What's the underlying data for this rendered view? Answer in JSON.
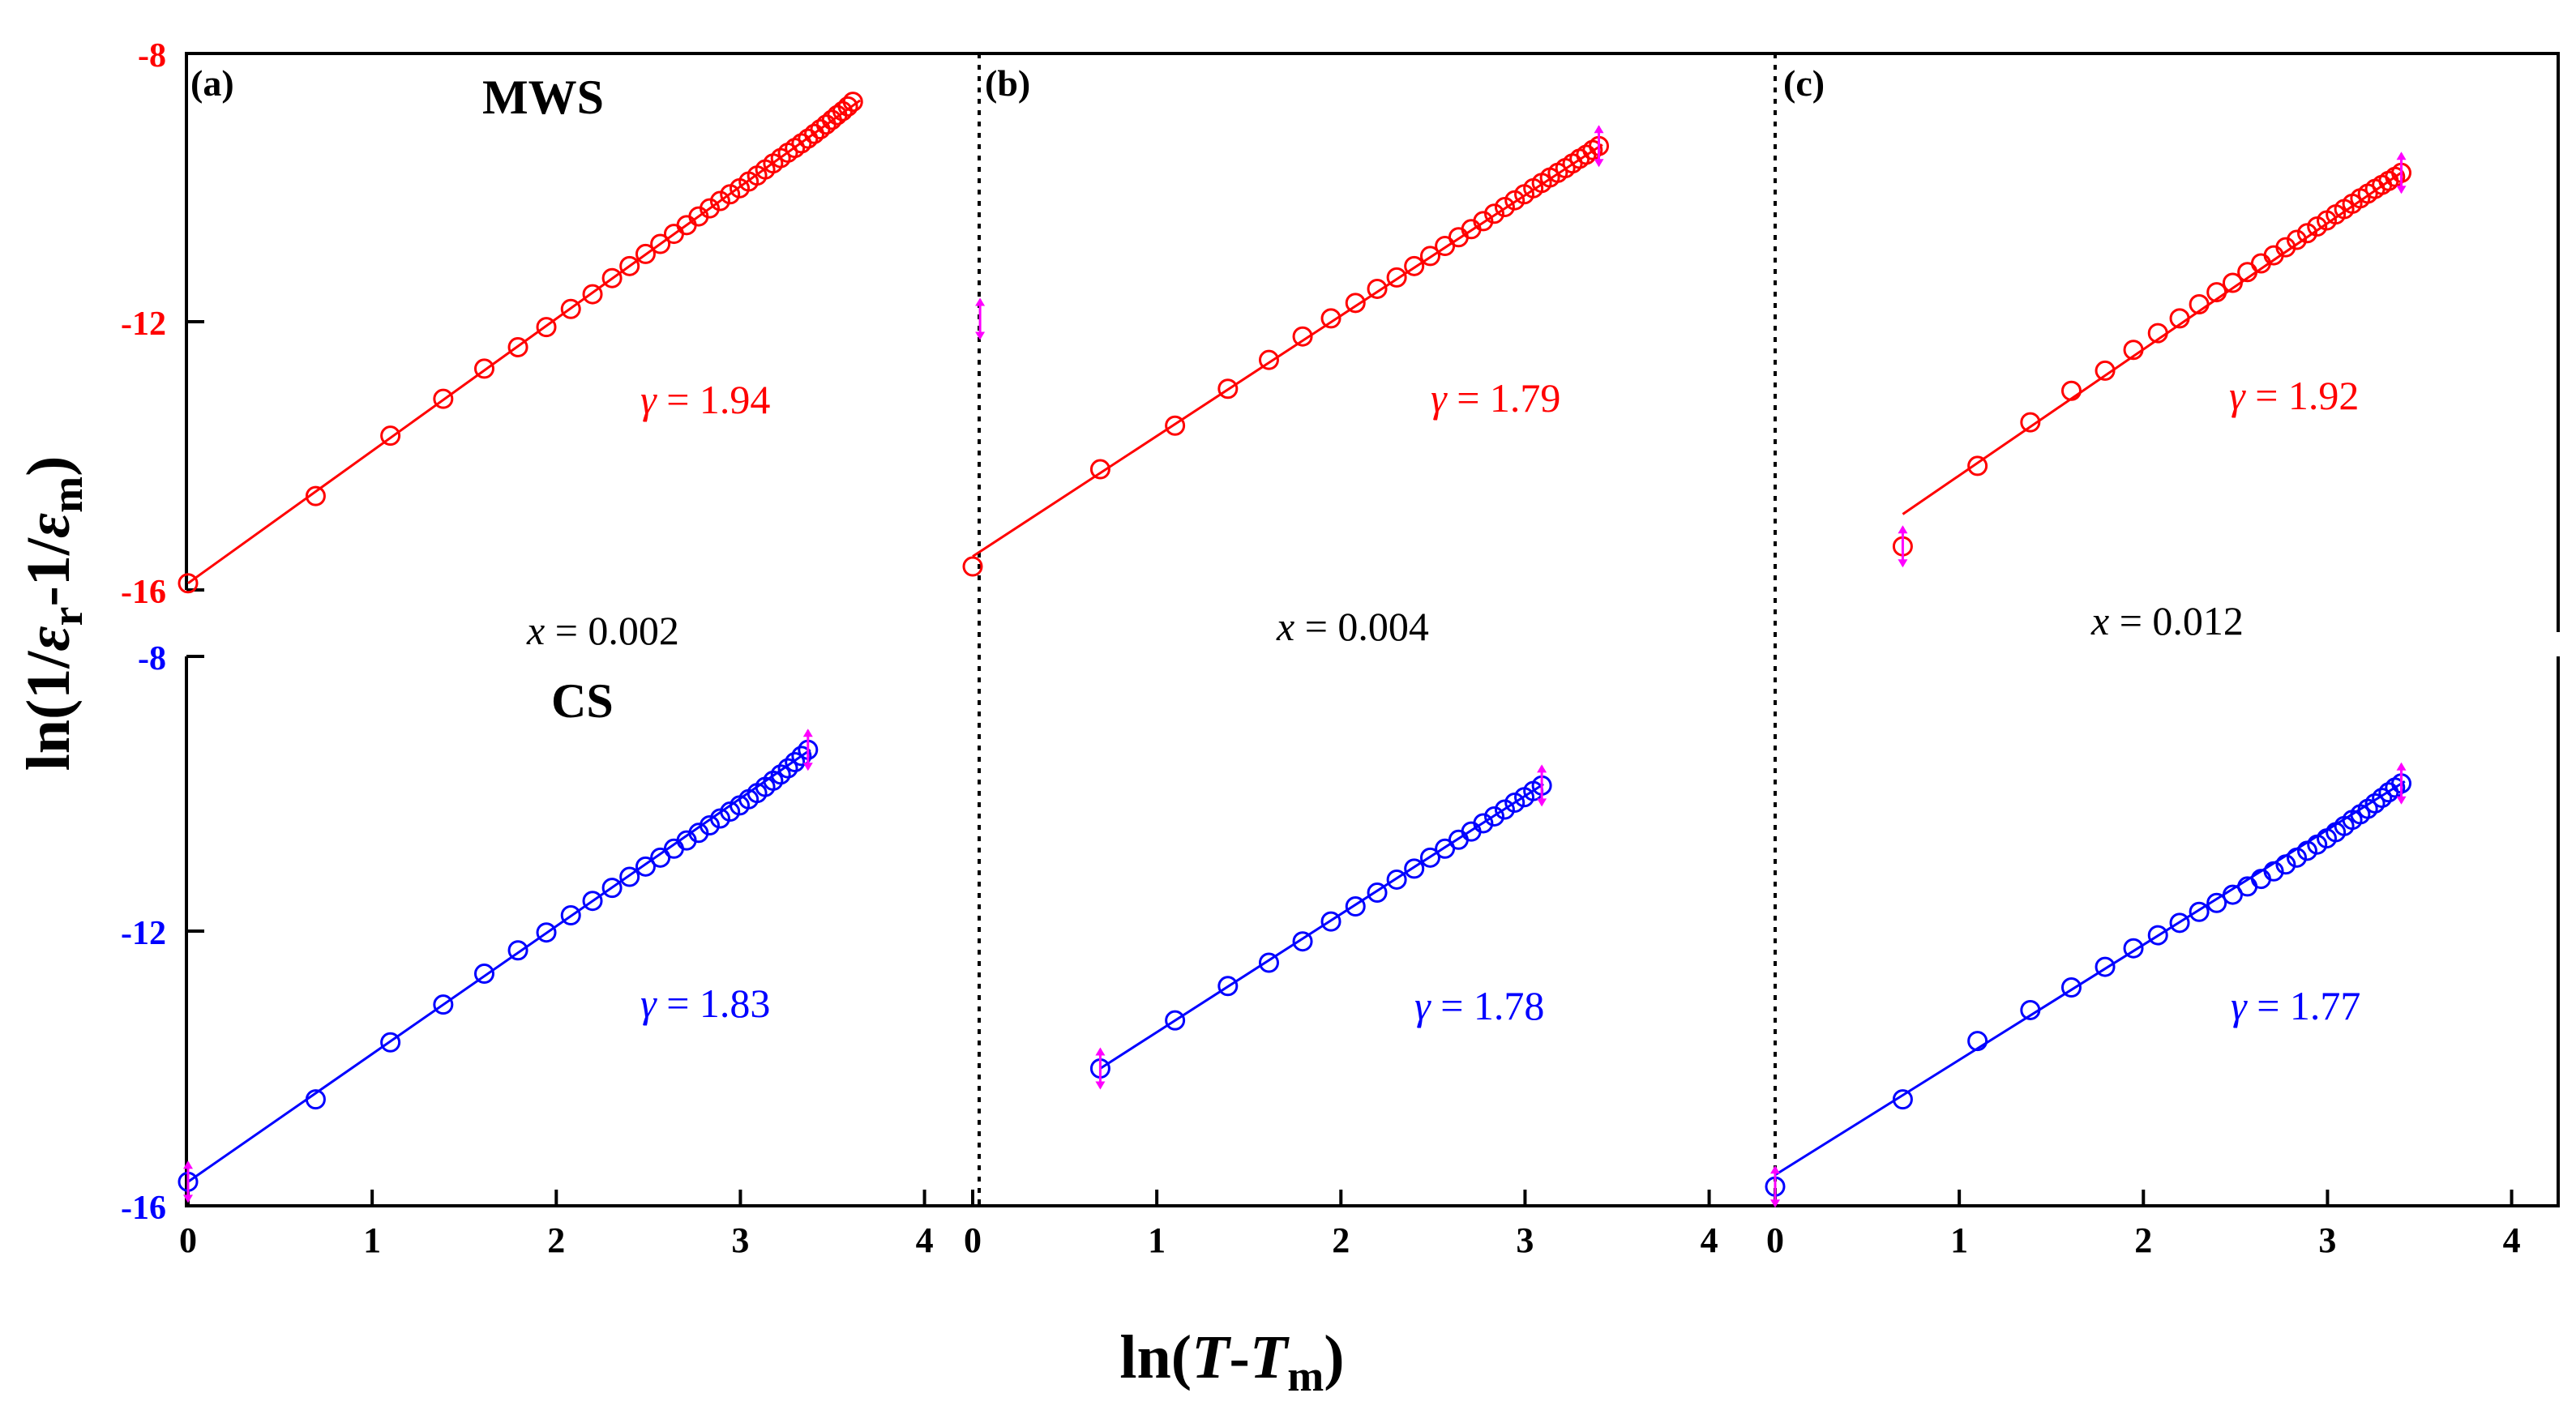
{
  "chart_data": {
    "type": "scatter",
    "xlabel": {
      "pre": "ln(",
      "T": "T",
      "dash": "-",
      "Tm": "T",
      "sub": "m",
      "post": ")"
    },
    "ylabel": {
      "pre": "ln(1/",
      "e1": "ε",
      "sub1": "r",
      "mid": "-1/",
      "e2": "ε",
      "sub2": "m",
      "post": ")"
    },
    "xlim": [
      0,
      4.2
    ],
    "ylim": [
      -16,
      -8
    ],
    "x_ticks": [
      "0",
      "1",
      "2",
      "3",
      "4"
    ],
    "y_ticks_top": [
      "-8",
      "-12",
      "-16"
    ],
    "y_ticks_bottom": [
      "-8",
      "-12",
      "-16"
    ],
    "colors": {
      "MWS": "#ff0000",
      "CS": "#0000ff",
      "errorbar": "#ff00ff",
      "text": "#000000"
    },
    "row_labels": {
      "MWS": "MWS",
      "CS": "CS"
    },
    "panels": [
      {
        "label": "(a)",
        "composition": {
          "symbol": "x",
          "text": " = 0.002"
        },
        "MWS": {
          "gamma_symbol": "γ",
          "gamma_text": " = 1.94",
          "x": [
            0,
            0.693,
            1.099,
            1.386,
            1.609,
            1.792,
            1.946,
            2.079,
            2.197,
            2.303,
            2.398,
            2.485,
            2.565,
            2.639,
            2.708,
            2.773,
            2.833,
            2.89,
            2.944,
            2.996,
            3.045,
            3.091,
            3.135,
            3.178,
            3.219,
            3.258,
            3.296,
            3.332,
            3.367,
            3.401,
            3.434,
            3.466,
            3.497,
            3.526,
            3.555,
            3.584,
            3.611
          ],
          "y": [
            -15.9,
            -14.6,
            -13.7,
            -13.15,
            -12.7,
            -12.38,
            -12.08,
            -11.81,
            -11.59,
            -11.35,
            -11.17,
            -10.99,
            -10.84,
            -10.69,
            -10.56,
            -10.43,
            -10.31,
            -10.2,
            -10.1,
            -10.01,
            -9.91,
            -9.82,
            -9.73,
            -9.64,
            -9.56,
            -9.48,
            -9.41,
            -9.34,
            -9.27,
            -9.2,
            -9.13,
            -9.06,
            -8.99,
            -8.92,
            -8.86,
            -8.79,
            -8.72
          ],
          "fit": {
            "x": [
              0,
              3.65
            ],
            "y": [
              -15.9,
              -8.7
            ]
          },
          "error_bars_at": []
        },
        "CS": {
          "gamma_symbol": "γ",
          "gamma_text": " = 1.83",
          "x": [
            0,
            0.693,
            1.099,
            1.386,
            1.609,
            1.792,
            1.946,
            2.079,
            2.197,
            2.303,
            2.398,
            2.485,
            2.565,
            2.639,
            2.708,
            2.773,
            2.833,
            2.89,
            2.944,
            2.996,
            3.045,
            3.091,
            3.135,
            3.178,
            3.219,
            3.258,
            3.296,
            3.332,
            3.367
          ],
          "y": [
            -15.65,
            -14.45,
            -13.62,
            -13.07,
            -12.62,
            -12.28,
            -12.02,
            -11.77,
            -11.56,
            -11.37,
            -11.21,
            -11.06,
            -10.93,
            -10.8,
            -10.68,
            -10.57,
            -10.46,
            -10.36,
            -10.26,
            -10.17,
            -10.08,
            -9.99,
            -9.9,
            -9.81,
            -9.72,
            -9.63,
            -9.54,
            -9.45,
            -9.36
          ],
          "fit": {
            "x": [
              0,
              3.38
            ],
            "y": [
              -15.65,
              -9.36
            ]
          },
          "error_bars_at": [
            0,
            28
          ]
        }
      },
      {
        "label": "(b)",
        "composition": {
          "symbol": "x",
          "text": " = 0.004"
        },
        "MWS": {
          "gamma_symbol": "γ",
          "gamma_text": " = 1.79",
          "x": [
            0,
            0.693,
            1.099,
            1.386,
            1.609,
            1.792,
            1.946,
            2.079,
            2.197,
            2.303,
            2.398,
            2.485,
            2.565,
            2.639,
            2.708,
            2.773,
            2.833,
            2.89,
            2.944,
            2.996,
            3.045,
            3.091,
            3.135,
            3.178,
            3.219,
            3.258,
            3.296,
            3.332,
            3.367,
            3.401
          ],
          "y": [
            -15.65,
            -14.2,
            -13.55,
            -13.0,
            -12.57,
            -12.22,
            -11.95,
            -11.72,
            -11.51,
            -11.34,
            -11.17,
            -11.02,
            -10.87,
            -10.74,
            -10.62,
            -10.5,
            -10.39,
            -10.29,
            -10.19,
            -10.1,
            -10.01,
            -9.93,
            -9.85,
            -9.78,
            -9.71,
            -9.64,
            -9.57,
            -9.51,
            -9.44,
            -9.38
          ],
          "fit": {
            "x": [
              0,
              3.42
            ],
            "y": [
              -15.5,
              -9.36
            ]
          },
          "error_bars_at": [
            29
          ],
          "stray_error_bar": {
            "x": 0.04,
            "y": -12.2
          }
        },
        "CS": {
          "gamma_symbol": "γ",
          "gamma_text": " = 1.78",
          "x": [
            0.693,
            1.099,
            1.386,
            1.609,
            1.792,
            1.946,
            2.079,
            2.197,
            2.303,
            2.398,
            2.485,
            2.565,
            2.639,
            2.708,
            2.773,
            2.833,
            2.89,
            2.944,
            2.996,
            3.045,
            3.091
          ],
          "y": [
            -14.0,
            -13.3,
            -12.8,
            -12.46,
            -12.15,
            -11.86,
            -11.64,
            -11.44,
            -11.25,
            -11.09,
            -10.93,
            -10.8,
            -10.67,
            -10.55,
            -10.43,
            -10.33,
            -10.23,
            -10.13,
            -10.05,
            -9.96,
            -9.88
          ],
          "fit": {
            "x": [
              0.693,
              3.1
            ],
            "y": [
              -14.0,
              -9.86
            ]
          },
          "error_bars_at": [
            0,
            20
          ]
        }
      },
      {
        "label": "(c)",
        "composition": {
          "symbol": "x",
          "text": " = 0.012"
        },
        "MWS": {
          "gamma_symbol": "γ",
          "gamma_text": " = 1.92",
          "x": [
            0.693,
            1.099,
            1.386,
            1.609,
            1.792,
            1.946,
            2.079,
            2.197,
            2.303,
            2.398,
            2.485,
            2.565,
            2.639,
            2.708,
            2.773,
            2.833,
            2.89,
            2.944,
            2.996,
            3.045,
            3.091,
            3.135,
            3.178,
            3.219,
            3.258,
            3.296,
            3.332,
            3.367,
            3.401
          ],
          "y": [
            -15.35,
            -14.15,
            -13.5,
            -13.03,
            -12.73,
            -12.42,
            -12.17,
            -11.95,
            -11.74,
            -11.56,
            -11.42,
            -11.26,
            -11.13,
            -11.01,
            -10.89,
            -10.78,
            -10.68,
            -10.58,
            -10.49,
            -10.4,
            -10.32,
            -10.24,
            -10.16,
            -10.09,
            -10.02,
            -9.96,
            -9.9,
            -9.84,
            -9.78
          ],
          "fit": {
            "x": [
              0.693,
              3.41
            ],
            "y": [
              -14.87,
              -9.76
            ]
          },
          "error_bars_at": [
            0,
            28
          ]
        },
        "CS": {
          "gamma_symbol": "γ",
          "gamma_text": " = 1.77",
          "x": [
            0,
            0.693,
            1.099,
            1.386,
            1.609,
            1.792,
            1.946,
            2.079,
            2.197,
            2.303,
            2.398,
            2.485,
            2.565,
            2.639,
            2.708,
            2.773,
            2.833,
            2.89,
            2.944,
            2.996,
            3.045,
            3.091,
            3.135,
            3.178,
            3.219,
            3.258,
            3.296,
            3.332,
            3.367,
            3.401
          ],
          "y": [
            -15.72,
            -14.45,
            -13.6,
            -13.15,
            -12.82,
            -12.52,
            -12.25,
            -12.06,
            -11.88,
            -11.72,
            -11.59,
            -11.47,
            -11.35,
            -11.24,
            -11.13,
            -11.03,
            -10.93,
            -10.83,
            -10.74,
            -10.65,
            -10.56,
            -10.47,
            -10.38,
            -10.3,
            -10.22,
            -10.14,
            -10.06,
            -9.98,
            -9.91,
            -9.85
          ],
          "fit": {
            "x": [
              0,
              3.42
            ],
            "y": [
              -15.55,
              -9.82
            ]
          },
          "error_bars_at": [
            0,
            29
          ]
        }
      }
    ]
  }
}
